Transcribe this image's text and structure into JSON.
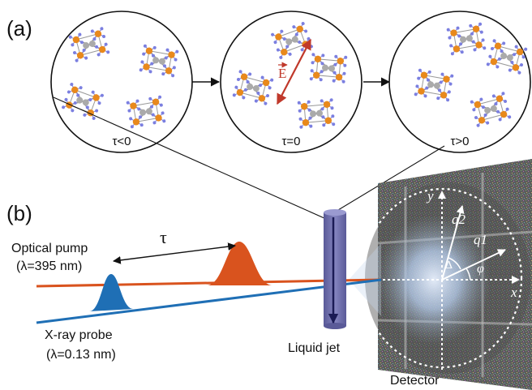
{
  "panel_a": {
    "label": "(a)",
    "circles": [
      {
        "caption": "τ<0"
      },
      {
        "caption": "τ=0",
        "field_label": "E"
      },
      {
        "caption": "τ>0"
      }
    ]
  },
  "panel_b": {
    "label": "(b)",
    "delay_label": "τ",
    "pump_label": "Optical pump",
    "pump_wavelength": "(λ=395 nm)",
    "probe_label": "X-ray probe",
    "probe_wavelength": "(λ=0.13 nm)",
    "jet_label": "Liquid jet",
    "detector_label": "Detector",
    "detector_axes": {
      "x": "x",
      "y": "y",
      "q1": "q1",
      "q2": "q2",
      "delta": "Δ",
      "phi": "φ"
    }
  },
  "colors": {
    "pump": "#d9531e",
    "probe": "#1f6fb5",
    "jet": "#6a6aa8",
    "field_arrow": "#c0392b",
    "atom_orange": "#e8891c",
    "atom_blue": "#7b7fe0",
    "atom_gray": "#aaaaaa",
    "detector": "#6f6f6f"
  }
}
